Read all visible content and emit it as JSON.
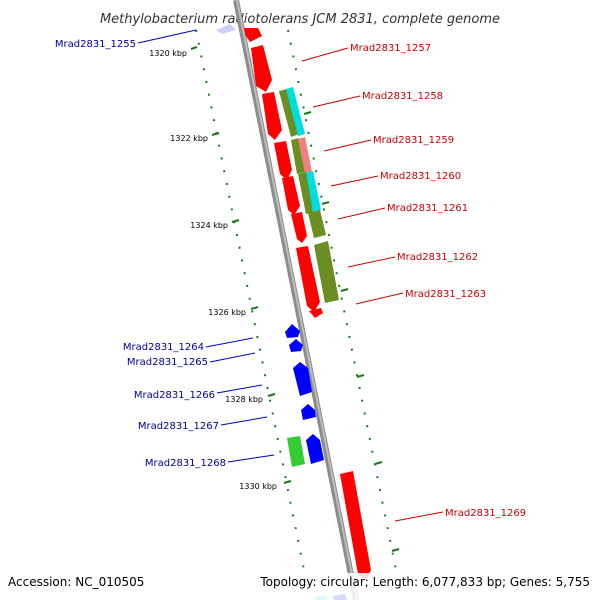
{
  "title": "Methylobacterium radiotolerans JCM 2831, complete genome",
  "accession": "Accession: NC_010505",
  "summary": "Topology: circular; Length: 6,077,833 bp; Genes: 5,755",
  "colors": {
    "forward_gene": "#ff0000",
    "reverse_gene": "#0000ff",
    "forward_label": "#cc0000",
    "reverse_label": "#000099",
    "cyan_feature": "#00dddd",
    "olive_feature": "#6b8e23",
    "green_feature": "#33cc33",
    "salmon_feature": "#f08080",
    "backbone": "#8c8c8c",
    "tick": "#1a7a1a"
  },
  "ruler": [
    {
      "label": "1320 kbp"
    },
    {
      "label": "1322 kbp"
    },
    {
      "label": "1324 kbp"
    },
    {
      "label": "1326 kbp"
    },
    {
      "label": "1328 kbp"
    },
    {
      "label": "1330 kbp"
    }
  ],
  "genes": [
    {
      "name": "Mrad2831_1255",
      "strand": "reverse"
    },
    {
      "name": "Mrad2831_1257",
      "strand": "forward"
    },
    {
      "name": "Mrad2831_1258",
      "strand": "forward"
    },
    {
      "name": "Mrad2831_1259",
      "strand": "forward"
    },
    {
      "name": "Mrad2831_1260",
      "strand": "forward"
    },
    {
      "name": "Mrad2831_1261",
      "strand": "forward"
    },
    {
      "name": "Mrad2831_1262",
      "strand": "forward"
    },
    {
      "name": "Mrad2831_1263",
      "strand": "forward"
    },
    {
      "name": "Mrad2831_1264",
      "strand": "reverse"
    },
    {
      "name": "Mrad2831_1265",
      "strand": "reverse"
    },
    {
      "name": "Mrad2831_1266",
      "strand": "reverse"
    },
    {
      "name": "Mrad2831_1267",
      "strand": "reverse"
    },
    {
      "name": "Mrad2831_1268",
      "strand": "reverse"
    },
    {
      "name": "Mrad2831_1269",
      "strand": "forward"
    }
  ]
}
